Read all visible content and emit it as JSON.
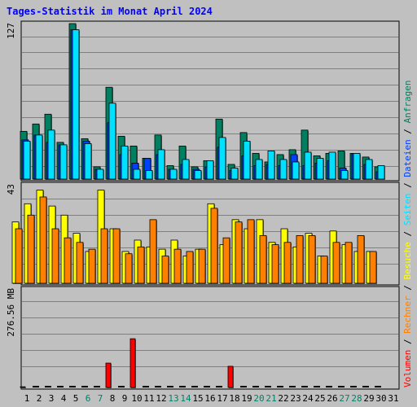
{
  "title": "Tages-Statistik im Monat April 2024",
  "colors": {
    "background": "#c0c0c0",
    "anfragen": "#008060",
    "dateien": "#0040ff",
    "seiten": "#00e0ff",
    "besuche": "#ffff00",
    "rechner": "#ff8000",
    "volumen": "#ff0000",
    "weekday_label": "#000000",
    "weekend_label": "#00806a"
  },
  "legend": [
    {
      "key": "volumen",
      "label": "Volumen",
      "color": "#ff0000"
    },
    {
      "key": "rechner",
      "label": "Rechner",
      "color": "#ff8000"
    },
    {
      "key": "besuche",
      "label": "Besuche",
      "color": "#ffff00"
    },
    {
      "key": "seiten",
      "label": "Seiten",
      "color": "#00e0ff"
    },
    {
      "key": "dateien",
      "label": "Dateien",
      "color": "#0040ff"
    },
    {
      "key": "anfragen",
      "label": "Anfragen",
      "color": "#008060"
    }
  ],
  "chart_data": {
    "type": "bar",
    "title": "Tages-Statistik im Monat April 2024",
    "legend_placement": "right-vertical",
    "grid": true,
    "categories": [
      "1",
      "2",
      "3",
      "4",
      "5",
      "6",
      "7",
      "8",
      "9",
      "10",
      "11",
      "12",
      "13",
      "14",
      "15",
      "16",
      "17",
      "18",
      "19",
      "20",
      "21",
      "22",
      "23",
      "24",
      "25",
      "26",
      "27",
      "28",
      "29",
      "30",
      "31"
    ],
    "weekend_days": [
      6,
      7,
      13,
      14,
      20,
      21,
      27,
      28
    ],
    "panels": [
      {
        "name": "top",
        "ymax_label": "127",
        "ymax": 127,
        "series": [
          {
            "key": "anfragen",
            "values": [
              39,
              45,
              53,
              30,
              127,
              33,
              10,
              75,
              35,
              27,
              17,
              36,
              11,
              27,
              10,
              15,
              49,
              12,
              38,
              21,
              14,
              20,
              24,
              40,
              19,
              21,
              23,
              21,
              18,
              10,
              null
            ]
          },
          {
            "key": "dateien",
            "values": [
              32,
              36,
              30,
              28,
              122,
              31,
              8,
              46,
              20,
              13,
              17,
              20,
              8,
              12,
              8,
              10,
              26,
              7,
              19,
              11,
              12,
              11,
              20,
              11,
              13,
              15,
              9,
              21,
              12,
              6,
              null
            ]
          },
          {
            "key": "seiten",
            "values": [
              31,
              36,
              40,
              28,
              122,
              29,
              8,
              62,
              27,
              8,
              7,
              24,
              8,
              16,
              7,
              15,
              34,
              9,
              31,
              16,
              23,
              16,
              14,
              22,
              17,
              22,
              7,
              21,
              16,
              11,
              null
            ]
          }
        ]
      },
      {
        "name": "middle",
        "ymax_label": "43",
        "ymax": 43,
        "series": [
          {
            "key": "besuche",
            "values": [
              27,
              35,
              41,
              34,
              30,
              22,
              14,
              41,
              24,
              14,
              19,
              16,
              15,
              19,
              12,
              15,
              35,
              17,
              28,
              24,
              28,
              18,
              24,
              16,
              22,
              12,
              23,
              17,
              14,
              14,
              null
            ]
          },
          {
            "key": "rechner",
            "values": [
              24,
              30,
              38,
              24,
              20,
              18,
              15,
              24,
              24,
              13,
              16,
              28,
              12,
              15,
              14,
              15,
              33,
              20,
              27,
              28,
              21,
              17,
              18,
              21,
              21,
              12,
              18,
              18,
              21,
              14,
              null
            ]
          }
        ]
      },
      {
        "name": "bottom",
        "ymax_label": "276.56 MB",
        "ymax": 276.56,
        "unit": "MB",
        "series": [
          {
            "key": "volumen",
            "values": [
              2,
              0,
              0,
              0,
              0,
              0,
              0,
              69,
              0,
              138,
              0,
              0,
              0,
              0,
              0,
              0,
              0,
              60,
              0,
              0,
              0,
              0,
              0,
              0,
              0,
              0,
              0,
              0,
              0,
              0,
              null
            ]
          }
        ]
      }
    ]
  }
}
